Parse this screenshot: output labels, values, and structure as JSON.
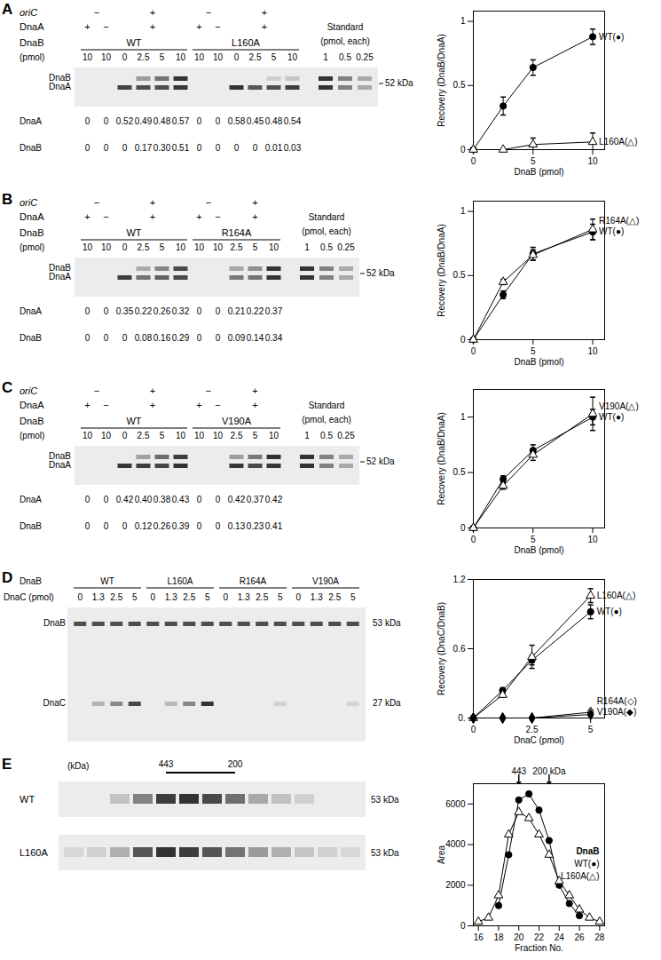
{
  "chart_data": [
    {
      "type": "line",
      "xlabel": "DnaB (pmol)",
      "ylabel": "Recovery (DnaB/DnaA)",
      "x": [
        0,
        2.5,
        5,
        10
      ],
      "xlim": [
        0,
        11
      ],
      "xticks": [
        0,
        5,
        10
      ],
      "ylim": [
        0,
        1.08
      ],
      "yticks": [
        0,
        0.5,
        1
      ],
      "series": [
        {
          "name": "WT(●)",
          "color": "#000000",
          "marker": "circle",
          "values": [
            0,
            0.34,
            0.64,
            0.88
          ],
          "errors": [
            0,
            0.07,
            0.06,
            0.06
          ]
        },
        {
          "name": "L160A(△)",
          "color": "#000000",
          "marker": "open triangle",
          "values": [
            0,
            0,
            0.04,
            0.06
          ],
          "errors": [
            0,
            0,
            0.05,
            0.07
          ]
        }
      ]
    },
    {
      "type": "line",
      "xlabel": "DnaB (pmol)",
      "ylabel": "Recovery (DnaB/DnaA)",
      "x": [
        0,
        2.5,
        5,
        10
      ],
      "xlim": [
        0,
        11
      ],
      "xticks": [
        0,
        5,
        10
      ],
      "ylim": [
        0,
        1.08
      ],
      "yticks": [
        0,
        0.5,
        1
      ],
      "series": [
        {
          "name": "WT(●)",
          "color": "#000000",
          "marker": "circle",
          "values": [
            0,
            0.35,
            0.67,
            0.84
          ],
          "errors": [
            0,
            0.03,
            0.05,
            0.06
          ]
        },
        {
          "name": "R164A(△)",
          "color": "#000000",
          "marker": "open triangle",
          "values": [
            0,
            0.45,
            0.66,
            0.86
          ],
          "errors": [
            0,
            0.02,
            0.04,
            0.08
          ]
        }
      ]
    },
    {
      "type": "line",
      "xlabel": "DnaB (pmol)",
      "ylabel": "Recovery (DnaB/DnaA)",
      "x": [
        0,
        2.5,
        5,
        10
      ],
      "xlim": [
        0,
        11
      ],
      "xticks": [
        0,
        5,
        10
      ],
      "ylim": [
        0,
        1.25
      ],
      "yticks": [
        0,
        0.5,
        1
      ],
      "series": [
        {
          "name": "WT(●)",
          "color": "#000000",
          "marker": "circle",
          "values": [
            0,
            0.44,
            0.7,
            1.0
          ],
          "errors": [
            0,
            0.03,
            0.05,
            0.07
          ]
        },
        {
          "name": "V190A(△)",
          "color": "#000000",
          "marker": "open triangle",
          "values": [
            0,
            0.38,
            0.66,
            1.03
          ],
          "errors": [
            0,
            0.03,
            0.05,
            0.15
          ]
        }
      ]
    },
    {
      "type": "line",
      "xlabel": "DnaC (pmol)",
      "ylabel": "Recovery (DnaC/DnaB)",
      "x": [
        0,
        1.25,
        2.5,
        5
      ],
      "xlim": [
        0,
        5.6
      ],
      "xticks": [
        0,
        2.5,
        5
      ],
      "ylim": [
        0,
        1.2
      ],
      "yticks": [
        {
          "value": 0,
          "label": "0."
        },
        0.6,
        1.2
      ],
      "series": [
        {
          "name": "WT(●)",
          "color": "#000000",
          "marker": "circle",
          "values": [
            0,
            0.24,
            0.5,
            0.92
          ],
          "errors": [
            0,
            0.02,
            0.04,
            0.06
          ]
        },
        {
          "name": "L160A(△)",
          "color": "#000000",
          "marker": "open triangle",
          "values": [
            0,
            0.2,
            0.53,
            1.06
          ],
          "errors": [
            0,
            0.02,
            0.1,
            0.06
          ]
        },
        {
          "name": "R164A(◇)",
          "color": "#000000",
          "marker": "open diamond",
          "values": [
            0,
            0,
            0,
            0.05
          ],
          "errors": [
            0,
            0,
            0,
            0.02
          ]
        },
        {
          "name": "V190A(◆)",
          "color": "#000000",
          "marker": "diamond",
          "values": [
            0,
            0,
            0,
            0.03
          ],
          "errors": [
            0,
            0,
            0,
            0.01
          ]
        }
      ]
    },
    {
      "type": "line",
      "xlabel": "Fraction No.",
      "ylabel": "Area",
      "x": [
        16,
        17,
        18,
        19,
        20,
        21,
        22,
        23,
        24,
        25,
        26,
        27,
        28
      ],
      "xlim": [
        15.5,
        28.5
      ],
      "xticks": [
        16,
        18,
        20,
        22,
        24,
        26,
        28
      ],
      "ylim": [
        0,
        7000
      ],
      "yticks": [
        0,
        2000,
        4000,
        6000
      ],
      "legend": "right",
      "legend_title": "DnaB",
      "annotations": [
        {
          "x": 20,
          "text": "443"
        },
        {
          "x": 23,
          "text": "200 kDa"
        }
      ],
      "series": [
        {
          "name": "WT(●)",
          "color": "#000000",
          "marker": "circle",
          "values": [
            null,
            null,
            1000,
            3500,
            6200,
            6500,
            5700,
            4200,
            2000,
            1100,
            500,
            null,
            null
          ]
        },
        {
          "name": "L160A(△)",
          "color": "#000000",
          "marker": "open triangle",
          "values": [
            200,
            400,
            1500,
            4500,
            5600,
            5300,
            4500,
            3500,
            2200,
            1500,
            800,
            400,
            200
          ]
        }
      ]
    }
  ],
  "gels": [
    {
      "panel": "A",
      "rows": [
        {
          "label": "oriC",
          "cells": [
            {
              "text": "−",
              "span": 2
            },
            {
              "text": "+",
              "span": 4
            },
            {
              "text": "−",
              "span": 2
            },
            {
              "text": "+",
              "span": 4
            }
          ]
        },
        {
          "label": "DnaA",
          "cells": [
            {
              "text": "+",
              "span": 1
            },
            {
              "text": "−",
              "span": 1
            },
            {
              "text": "+",
              "span": 4
            },
            {
              "text": "+",
              "span": 1
            },
            {
              "text": "−",
              "span": 1
            },
            {
              "text": "+",
              "span": 4
            }
          ]
        },
        {
          "label": "DnaB",
          "cells": [
            {
              "text": "WT",
              "span": 6
            },
            {
              "text": "L160A",
              "span": 6
            }
          ]
        }
      ],
      "pmol_label": "(pmol)",
      "pmol": [
        10,
        10,
        0,
        2.5,
        5,
        10,
        10,
        10,
        0,
        2.5,
        5,
        10
      ],
      "band_labels": [
        "DnaB",
        "DnaA"
      ],
      "size_label": "52 kDa",
      "standard": {
        "title": "Standard",
        "subtitle": "(pmol, each)",
        "pmol": [
          1,
          0.5,
          0.25
        ]
      },
      "quant": [
        {
          "label": "DnaA",
          "values": [
            0,
            0,
            0.52,
            0.49,
            0.48,
            0.57,
            0,
            0,
            0.58,
            0.45,
            0.48,
            0.54
          ]
        },
        {
          "label": "DnaB",
          "values": [
            0,
            0,
            0,
            0.17,
            0.3,
            0.51,
            0,
            0,
            0,
            0,
            0.01,
            0.03
          ]
        }
      ]
    },
    {
      "panel": "B",
      "rows": [
        {
          "label": "oriC",
          "cells": [
            {
              "text": "−",
              "span": 2
            },
            {
              "text": "+",
              "span": 4
            },
            {
              "text": "−",
              "span": 2
            },
            {
              "text": "+",
              "span": 3
            }
          ]
        },
        {
          "label": "DnaA",
          "cells": [
            {
              "text": "+",
              "span": 1
            },
            {
              "text": "−",
              "span": 1
            },
            {
              "text": "+",
              "span": 4
            },
            {
              "text": "+",
              "span": 1
            },
            {
              "text": "−",
              "span": 1
            },
            {
              "text": "+",
              "span": 3
            }
          ]
        },
        {
          "label": "DnaB",
          "cells": [
            {
              "text": "WT",
              "span": 6
            },
            {
              "text": "R164A",
              "span": 5
            }
          ]
        }
      ],
      "pmol_label": "(pmol)",
      "pmol": [
        10,
        10,
        0,
        2.5,
        5,
        10,
        10,
        10,
        2.5,
        5,
        10
      ],
      "band_labels": [
        "DnaB",
        "DnaA"
      ],
      "size_label": "52 kDa",
      "standard": {
        "title": "Standard",
        "subtitle": "(pmol, each)",
        "pmol": [
          1,
          0.5,
          0.25
        ]
      },
      "quant": [
        {
          "label": "DnaA",
          "values": [
            0,
            0,
            0.35,
            0.22,
            0.26,
            0.32,
            0,
            0,
            0.21,
            0.22,
            0.37
          ]
        },
        {
          "label": "DnaB",
          "values": [
            0,
            0,
            0,
            0.08,
            0.16,
            0.29,
            0,
            0,
            0.09,
            0.14,
            0.34
          ]
        }
      ]
    },
    {
      "panel": "C",
      "rows": [
        {
          "label": "oriC",
          "cells": [
            {
              "text": "−",
              "span": 2
            },
            {
              "text": "+",
              "span": 4
            },
            {
              "text": "−",
              "span": 2
            },
            {
              "text": "+",
              "span": 3
            }
          ]
        },
        {
          "label": "DnaA",
          "cells": [
            {
              "text": "+",
              "span": 1
            },
            {
              "text": "−",
              "span": 1
            },
            {
              "text": "+",
              "span": 4
            },
            {
              "text": "+",
              "span": 1
            },
            {
              "text": "−",
              "span": 1
            },
            {
              "text": "+",
              "span": 3
            }
          ]
        },
        {
          "label": "DnaB",
          "cells": [
            {
              "text": "WT",
              "span": 6
            },
            {
              "text": "V190A",
              "span": 5
            }
          ]
        }
      ],
      "pmol_label": "(pmol)",
      "pmol": [
        10,
        10,
        0,
        2.5,
        5,
        10,
        10,
        10,
        2.5,
        5,
        10
      ],
      "band_labels": [
        "DnaB",
        "DnaA"
      ],
      "size_label": "52 kDa",
      "standard": {
        "title": "Standard",
        "subtitle": "(pmol, each)",
        "pmol": [
          1,
          0.5,
          0.25
        ]
      },
      "quant": [
        {
          "label": "DnaA",
          "values": [
            0,
            0,
            0.42,
            0.4,
            0.38,
            0.43,
            0,
            0,
            0.42,
            0.37,
            0.42
          ]
        },
        {
          "label": "DnaB",
          "values": [
            0,
            0,
            0,
            0.12,
            0.26,
            0.39,
            0,
            0,
            0.13,
            0.23,
            0.41
          ]
        }
      ]
    },
    {
      "panel": "D",
      "rows": [
        {
          "label": "DnaB",
          "cells": [
            {
              "text": "WT",
              "span": 4
            },
            {
              "text": "L160A",
              "span": 4
            },
            {
              "text": "R164A",
              "span": 4
            },
            {
              "text": "V190A",
              "span": 4
            }
          ]
        }
      ],
      "pmol_label": "DnaC (pmol)",
      "pmol": [
        0,
        1.3,
        2.5,
        5,
        0,
        1.3,
        2.5,
        5,
        0,
        1.3,
        2.5,
        5,
        0,
        1.3,
        2.5,
        5
      ],
      "bands": [
        {
          "label": "DnaB",
          "size_label": "53 kDa"
        },
        {
          "label": "DnaC",
          "size_label": "27 kDa"
        }
      ]
    },
    {
      "panel": "E",
      "marker_unit": "(kDa)",
      "markers": [
        {
          "x": 20,
          "text": "443"
        },
        {
          "x": 23,
          "text": "200"
        }
      ],
      "rows": [
        "WT",
        "L160A"
      ],
      "size_label": "53 kDa"
    }
  ]
}
